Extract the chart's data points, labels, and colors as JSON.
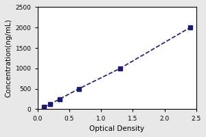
{
  "x_data": [
    0.1,
    0.2,
    0.35,
    0.65,
    1.3,
    2.4
  ],
  "y_data": [
    50,
    125,
    250,
    500,
    1000,
    2000
  ],
  "line_color": "#1a1a6e",
  "marker_color": "#1a1a6e",
  "marker_style": "s",
  "marker_size": 4,
  "line_style": "--",
  "line_width": 1.2,
  "xlabel": "Optical Density",
  "ylabel": "Concentration(ng/mL)",
  "xlim": [
    0,
    2.5
  ],
  "ylim": [
    0,
    2500
  ],
  "xticks": [
    0,
    0.5,
    1,
    1.5,
    2,
    2.5
  ],
  "yticks": [
    0,
    500,
    1000,
    1500,
    2000,
    2500
  ],
  "xlabel_fontsize": 7.5,
  "ylabel_fontsize": 7.5,
  "tick_fontsize": 6.5,
  "background_color": "#ffffff",
  "figure_bg": "#e8e8e8"
}
